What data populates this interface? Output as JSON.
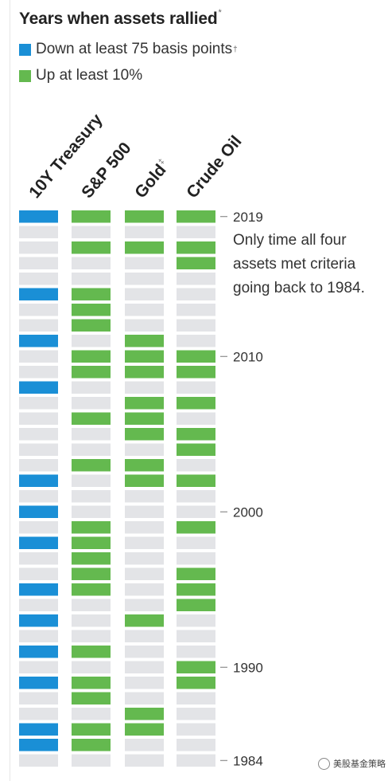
{
  "colors": {
    "treasury": "#1a8fd6",
    "green": "#64b94f",
    "neutral": "#e3e4e7"
  },
  "chart_data": {
    "type": "heatmap",
    "title": "Years when assets rallied",
    "title_mark": "*",
    "legend": [
      {
        "label": "Down at least 75 basis points",
        "mark": "†",
        "color": "#1a8fd6"
      },
      {
        "label": "Up at least 10%",
        "mark": "",
        "color": "#64b94f"
      }
    ],
    "series": [
      {
        "name": "10Y Treasury",
        "mark": "",
        "color": "#1a8fd6"
      },
      {
        "name": "S&P 500",
        "mark": "",
        "color": "#64b94f"
      },
      {
        "name": "Gold",
        "mark": "‡",
        "color": "#64b94f"
      },
      {
        "name": "Crude Oil",
        "mark": "",
        "color": "#64b94f"
      }
    ],
    "years_desc": [
      2019,
      2018,
      2017,
      2016,
      2015,
      2014,
      2013,
      2012,
      2011,
      2010,
      2009,
      2008,
      2007,
      2006,
      2005,
      2004,
      2003,
      2002,
      2001,
      2000,
      1999,
      1998,
      1997,
      1996,
      1995,
      1994,
      1993,
      1992,
      1991,
      1990,
      1989,
      1988,
      1987,
      1986,
      1985,
      1984
    ],
    "rallied": [
      [
        1,
        1,
        1,
        1
      ],
      [
        0,
        0,
        0,
        0
      ],
      [
        0,
        1,
        1,
        1
      ],
      [
        0,
        0,
        0,
        1
      ],
      [
        0,
        0,
        0,
        0
      ],
      [
        1,
        1,
        0,
        0
      ],
      [
        0,
        1,
        0,
        0
      ],
      [
        0,
        1,
        0,
        0
      ],
      [
        1,
        0,
        1,
        0
      ],
      [
        0,
        1,
        1,
        1
      ],
      [
        0,
        1,
        1,
        1
      ],
      [
        1,
        0,
        0,
        0
      ],
      [
        0,
        0,
        1,
        1
      ],
      [
        0,
        1,
        1,
        0
      ],
      [
        0,
        0,
        1,
        1
      ],
      [
        0,
        0,
        0,
        1
      ],
      [
        0,
        1,
        1,
        0
      ],
      [
        1,
        0,
        1,
        1
      ],
      [
        0,
        0,
        0,
        0
      ],
      [
        1,
        0,
        0,
        0
      ],
      [
        0,
        1,
        0,
        1
      ],
      [
        1,
        1,
        0,
        0
      ],
      [
        0,
        1,
        0,
        0
      ],
      [
        0,
        1,
        0,
        1
      ],
      [
        1,
        1,
        0,
        1
      ],
      [
        0,
        0,
        0,
        1
      ],
      [
        1,
        0,
        1,
        0
      ],
      [
        0,
        0,
        0,
        0
      ],
      [
        1,
        1,
        0,
        0
      ],
      [
        0,
        0,
        0,
        1
      ],
      [
        1,
        1,
        0,
        1
      ],
      [
        0,
        1,
        0,
        0
      ],
      [
        0,
        0,
        1,
        0
      ],
      [
        1,
        1,
        1,
        0
      ],
      [
        1,
        1,
        0,
        0
      ],
      [
        0,
        0,
        0,
        0
      ]
    ],
    "year_ticks": [
      2019,
      2010,
      2000,
      1990,
      1984
    ],
    "annotation": "Only time all four assets met criteria going back to 1984."
  },
  "watermark": "美股基金策略"
}
